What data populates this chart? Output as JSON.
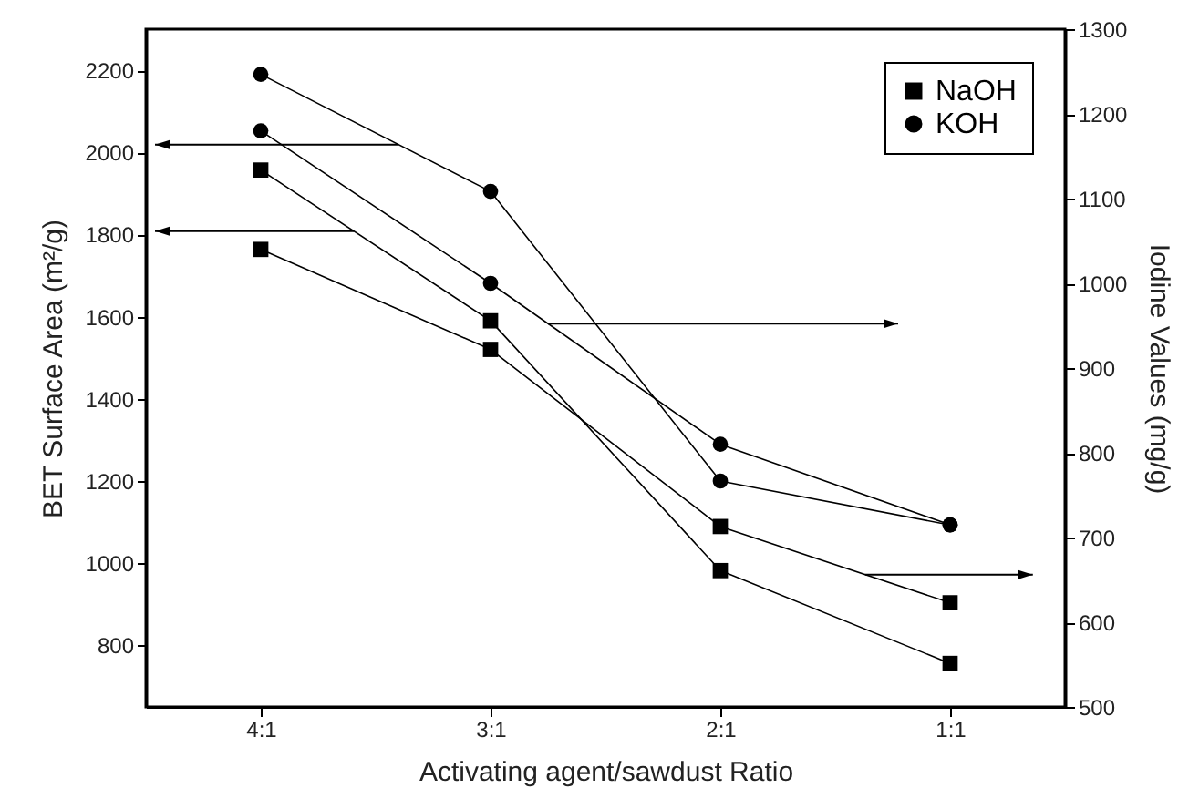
{
  "chart_data": {
    "type": "line",
    "xlabel": "Activating agent/sawdust Ratio",
    "ylabel": "BET Surface Area (m²/g)",
    "y2label": "Iodine Values (mg/g)",
    "categories": [
      "4:1",
      "3:1",
      "2:1",
      "1:1"
    ],
    "series": [
      {
        "name": "NaOH",
        "color": "#000000",
        "marker": "square",
        "values": [
          1957,
          1590,
          982,
          756
        ]
      },
      {
        "name": "KOH",
        "color": "#000000",
        "marker": "circle",
        "values": [
          2190,
          1905,
          1200,
          1093
        ]
      },
      {
        "color": "#000000",
        "marker": "square",
        "axis": "y2",
        "values": [
          1040,
          922,
          713,
          623
        ]
      },
      {
        "color": "#000000",
        "marker": "circle",
        "axis": "y2",
        "values": [
          1180,
          1000,
          810,
          715
        ]
      }
    ],
    "ylim": [
      650,
      2300
    ],
    "yticks": [
      800,
      1000,
      1200,
      1400,
      1600,
      1800,
      2000,
      2200
    ],
    "y2lim": [
      500,
      1300
    ],
    "y2ticks": [
      500,
      600,
      700,
      800,
      900,
      1000,
      1100,
      1200,
      1300
    ],
    "grid": false,
    "legend": "top right",
    "line_style": "solid"
  }
}
